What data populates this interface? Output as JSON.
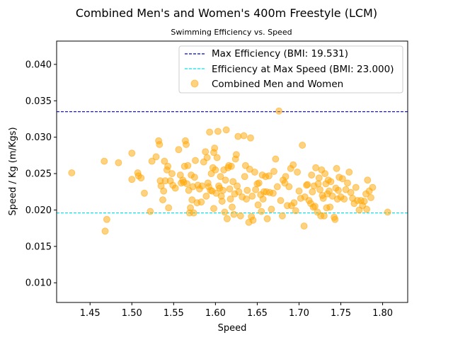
{
  "chart_data": {
    "type": "scatter",
    "title": "Combined Men's and Women's 400m Freestyle (LCM)",
    "subtitle": "Swimming Efficiency vs. Speed",
    "xlabel": "Speed",
    "ylabel": "Speed / Kg (m/Kgs)",
    "xlim": [
      1.41,
      1.83
    ],
    "ylim": [
      0.0073,
      0.0432
    ],
    "xticks": [
      "1.45",
      "1.50",
      "1.55",
      "1.60",
      "1.65",
      "1.70",
      "1.75",
      "1.80"
    ],
    "yticks": [
      "0.010",
      "0.015",
      "0.020",
      "0.025",
      "0.030",
      "0.035",
      "0.040"
    ],
    "grid": false,
    "legend_position": "top-right",
    "reference_lines": [
      {
        "label": "Max Efficiency (BMI: 19.531)",
        "y": 0.0335,
        "color": "#0000cc",
        "style": "dashed"
      },
      {
        "label": "Efficiency at Max Speed (BMI: 23.000)",
        "y": 0.0196,
        "color": "#00e5ee",
        "style": "dashed"
      }
    ],
    "series": [
      {
        "name": "Combined Men and Women",
        "color": "#ffa500",
        "points": [
          [
            1.428,
            0.0251
          ],
          [
            1.467,
            0.0267
          ],
          [
            1.468,
            0.0171
          ],
          [
            1.47,
            0.0187
          ],
          [
            1.484,
            0.0265
          ],
          [
            1.5,
            0.0278
          ],
          [
            1.5,
            0.0242
          ],
          [
            1.507,
            0.0251
          ],
          [
            1.508,
            0.0247
          ],
          [
            1.511,
            0.0244
          ],
          [
            1.515,
            0.0223
          ],
          [
            1.522,
            0.0198
          ],
          [
            1.524,
            0.0267
          ],
          [
            1.529,
            0.0273
          ],
          [
            1.532,
            0.0295
          ],
          [
            1.533,
            0.029
          ],
          [
            1.534,
            0.024
          ],
          [
            1.535,
            0.0233
          ],
          [
            1.537,
            0.0214
          ],
          [
            1.538,
            0.0226
          ],
          [
            1.539,
            0.0267
          ],
          [
            1.54,
            0.024
          ],
          [
            1.542,
            0.0255
          ],
          [
            1.543,
            0.026
          ],
          [
            1.544,
            0.0203
          ],
          [
            1.546,
            0.024
          ],
          [
            1.548,
            0.025
          ],
          [
            1.549,
            0.0234
          ],
          [
            1.552,
            0.023
          ],
          [
            1.556,
            0.0283
          ],
          [
            1.558,
            0.0248
          ],
          [
            1.559,
            0.0237
          ],
          [
            1.561,
            0.0241
          ],
          [
            1.562,
            0.0238
          ],
          [
            1.563,
            0.026
          ],
          [
            1.564,
            0.0295
          ],
          [
            1.565,
            0.029
          ],
          [
            1.566,
            0.0236
          ],
          [
            1.567,
            0.0261
          ],
          [
            1.568,
            0.0227
          ],
          [
            1.569,
            0.0196
          ],
          [
            1.57,
            0.0203
          ],
          [
            1.571,
            0.0248
          ],
          [
            1.572,
            0.0214
          ],
          [
            1.573,
            0.0232
          ],
          [
            1.574,
            0.0196
          ],
          [
            1.575,
            0.0245
          ],
          [
            1.576,
            0.0268
          ],
          [
            1.578,
            0.021
          ],
          [
            1.579,
            0.0234
          ],
          [
            1.581,
            0.0229
          ],
          [
            1.583,
            0.0211
          ],
          [
            1.584,
            0.0233
          ],
          [
            1.586,
            0.0266
          ],
          [
            1.588,
            0.028
          ],
          [
            1.589,
            0.0219
          ],
          [
            1.59,
            0.0272
          ],
          [
            1.591,
            0.0237
          ],
          [
            1.592,
            0.0232
          ],
          [
            1.593,
            0.0307
          ],
          [
            1.594,
            0.0227
          ],
          [
            1.595,
            0.025
          ],
          [
            1.596,
            0.0226
          ],
          [
            1.597,
            0.0258
          ],
          [
            1.598,
            0.0202
          ],
          [
            1.598,
            0.0279
          ],
          [
            1.599,
            0.0285
          ],
          [
            1.6,
            0.0255
          ],
          [
            1.601,
            0.0223
          ],
          [
            1.602,
            0.0272
          ],
          [
            1.603,
            0.0308
          ],
          [
            1.604,
            0.0233
          ],
          [
            1.605,
            0.023
          ],
          [
            1.606,
            0.0246
          ],
          [
            1.607,
            0.0219
          ],
          [
            1.608,
            0.0212
          ],
          [
            1.609,
            0.0227
          ],
          [
            1.61,
            0.0255
          ],
          [
            1.611,
            0.0197
          ],
          [
            1.612,
            0.0241
          ],
          [
            1.613,
            0.031
          ],
          [
            1.614,
            0.0188
          ],
          [
            1.615,
            0.0258
          ],
          [
            1.616,
            0.0261
          ],
          [
            1.617,
            0.0229
          ],
          [
            1.618,
            0.0215
          ],
          [
            1.619,
            0.026
          ],
          [
            1.62,
            0.0204
          ],
          [
            1.621,
            0.0239
          ],
          [
            1.622,
            0.0194
          ],
          [
            1.623,
            0.0222
          ],
          [
            1.624,
            0.027
          ],
          [
            1.625,
            0.0276
          ],
          [
            1.626,
            0.0233
          ],
          [
            1.627,
            0.0301
          ],
          [
            1.628,
            0.0225
          ],
          [
            1.63,
            0.0192
          ],
          [
            1.632,
            0.0218
          ],
          [
            1.634,
            0.0302
          ],
          [
            1.635,
            0.0246
          ],
          [
            1.636,
            0.0261
          ],
          [
            1.637,
            0.0215
          ],
          [
            1.638,
            0.0227
          ],
          [
            1.64,
            0.0183
          ],
          [
            1.641,
            0.0256
          ],
          [
            1.642,
            0.0299
          ],
          [
            1.643,
            0.0191
          ],
          [
            1.644,
            0.0219
          ],
          [
            1.645,
            0.0186
          ],
          [
            1.647,
            0.0252
          ],
          [
            1.648,
            0.0228
          ],
          [
            1.65,
            0.0236
          ],
          [
            1.651,
            0.0207
          ],
          [
            1.652,
            0.0237
          ],
          [
            1.654,
            0.0221
          ],
          [
            1.655,
            0.0198
          ],
          [
            1.656,
            0.0248
          ],
          [
            1.657,
            0.0215
          ],
          [
            1.658,
            0.0225
          ],
          [
            1.66,
            0.0246
          ],
          [
            1.661,
            0.0225
          ],
          [
            1.662,
            0.0188
          ],
          [
            1.664,
            0.0247
          ],
          [
            1.665,
            0.0224
          ],
          [
            1.667,
            0.0201
          ],
          [
            1.669,
            0.0223
          ],
          [
            1.67,
            0.0253
          ],
          [
            1.672,
            0.027
          ],
          [
            1.674,
            0.0232
          ],
          [
            1.676,
            0.0336
          ],
          [
            1.678,
            0.0213
          ],
          [
            1.68,
            0.0192
          ],
          [
            1.681,
            0.0241
          ],
          [
            1.683,
            0.0237
          ],
          [
            1.684,
            0.0246
          ],
          [
            1.686,
            0.0206
          ],
          [
            1.688,
            0.0232
          ],
          [
            1.69,
            0.0257
          ],
          [
            1.691,
            0.0206
          ],
          [
            1.693,
            0.0262
          ],
          [
            1.694,
            0.021
          ],
          [
            1.696,
            0.0199
          ],
          [
            1.698,
            0.0252
          ],
          [
            1.7,
            0.0226
          ],
          [
            1.702,
            0.0216
          ],
          [
            1.704,
            0.0289
          ],
          [
            1.706,
            0.0178
          ],
          [
            1.707,
            0.0218
          ],
          [
            1.709,
            0.0234
          ],
          [
            1.71,
            0.0235
          ],
          [
            1.712,
            0.0213
          ],
          [
            1.714,
            0.0209
          ],
          [
            1.715,
            0.0248
          ],
          [
            1.716,
            0.0225
          ],
          [
            1.717,
            0.0204
          ],
          [
            1.718,
            0.0233
          ],
          [
            1.719,
            0.0205
          ],
          [
            1.72,
            0.0258
          ],
          [
            1.722,
            0.0197
          ],
          [
            1.723,
            0.0236
          ],
          [
            1.724,
            0.0244
          ],
          [
            1.725,
            0.0228
          ],
          [
            1.726,
            0.0192
          ],
          [
            1.727,
            0.0255
          ],
          [
            1.728,
            0.022
          ],
          [
            1.729,
            0.0216
          ],
          [
            1.73,
            0.0192
          ],
          [
            1.731,
            0.025
          ],
          [
            1.732,
            0.0236
          ],
          [
            1.733,
            0.0203
          ],
          [
            1.734,
            0.0222
          ],
          [
            1.735,
            0.0241
          ],
          [
            1.736,
            0.0226
          ],
          [
            1.737,
            0.0204
          ],
          [
            1.738,
            0.0239
          ],
          [
            1.74,
            0.0219
          ],
          [
            1.742,
            0.019
          ],
          [
            1.743,
            0.0187
          ],
          [
            1.744,
            0.023
          ],
          [
            1.745,
            0.0257
          ],
          [
            1.746,
            0.0215
          ],
          [
            1.747,
            0.0227
          ],
          [
            1.748,
            0.0245
          ],
          [
            1.75,
            0.0218
          ],
          [
            1.752,
            0.0243
          ],
          [
            1.754,
            0.0215
          ],
          [
            1.756,
            0.0228
          ],
          [
            1.758,
            0.0237
          ],
          [
            1.76,
            0.0252
          ],
          [
            1.762,
            0.0224
          ],
          [
            1.764,
            0.0216
          ],
          [
            1.766,
            0.0209
          ],
          [
            1.768,
            0.0231
          ],
          [
            1.77,
            0.0213
          ],
          [
            1.772,
            0.02
          ],
          [
            1.774,
            0.0213
          ],
          [
            1.776,
            0.0206
          ],
          [
            1.778,
            0.0212
          ],
          [
            1.78,
            0.0222
          ],
          [
            1.781,
            0.0201
          ],
          [
            1.782,
            0.0241
          ],
          [
            1.784,
            0.0226
          ],
          [
            1.786,
            0.0217
          ],
          [
            1.788,
            0.0231
          ],
          [
            1.806,
            0.0197
          ]
        ]
      }
    ]
  }
}
